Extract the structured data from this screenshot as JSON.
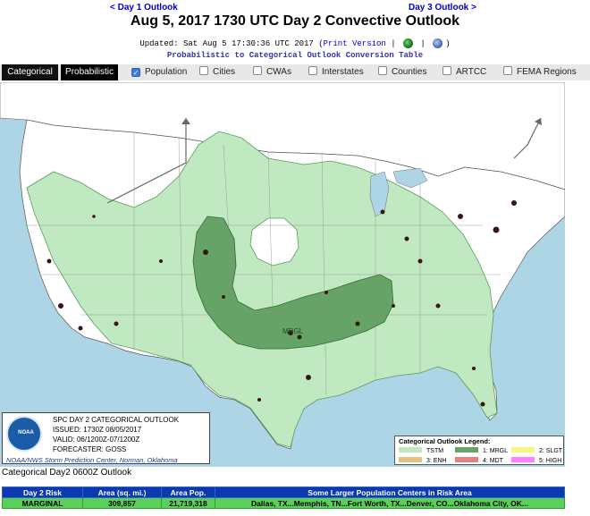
{
  "nav": {
    "prev_label": "< Day 1 Outlook",
    "next_label": "Day 3 Outlook >"
  },
  "title": "Aug 5, 2017 1730 UTC Day 2 Convective Outlook",
  "updated": {
    "prefix": "Updated: Sat Aug 5 17:30:36 UTC 2017 (",
    "print_label": "Print Version",
    "sep1": " | ",
    "sep2": " | ",
    "suffix": ")"
  },
  "conversion_link": "Probabilistic to Categorical Outlook Conversion Table",
  "tabs": [
    {
      "label": "Categorical",
      "active": true
    },
    {
      "label": "Probabilistic",
      "active": false
    }
  ],
  "overlays": [
    {
      "label": "Population",
      "checked": true
    },
    {
      "label": "Cities",
      "checked": false
    },
    {
      "label": "CWAs",
      "checked": false
    },
    {
      "label": "Interstates",
      "checked": false
    },
    {
      "label": "Counties",
      "checked": false
    },
    {
      "label": "ARTCC",
      "checked": false
    },
    {
      "label": "FEMA Regions",
      "checked": false
    }
  ],
  "map": {
    "risk_label": "MRGL",
    "colors": {
      "water": "#aed5e6",
      "land": "#ffffff",
      "tstm": "#c1e9c1",
      "mrgl": "#66a366"
    }
  },
  "info_box": {
    "logo_text": "NOAA",
    "line1": "SPC DAY 2 CATEGORICAL OUTLOOK",
    "line2": "ISSUED: 1730Z 08/05/2017",
    "line3": "VALID: 06/1200Z-07/1200Z",
    "line4": "FORECASTER: GOSS",
    "footer": "NOAA/NWS Storm Prediction Center, Norman, Oklahoma"
  },
  "legend": {
    "title": "Categorical Outlook Legend:",
    "items": [
      {
        "label": "TSTM",
        "color": "#c1e9c1"
      },
      {
        "label": "1: MRGL",
        "color": "#66a366"
      },
      {
        "label": "2: SLGT",
        "color": "#f6f67f"
      },
      {
        "label": "3: ENH",
        "color": "#e6c27f"
      },
      {
        "label": "4: MDT",
        "color": "#e67f7f"
      },
      {
        "label": "5: HIGH",
        "color": "#ff7fff"
      }
    ]
  },
  "table_caption": "Categorical Day2 0600Z Outlook",
  "risk_table": {
    "headers": [
      "Day 2 Risk",
      "Area (sq. mi.)",
      "Area Pop.",
      "Some Larger Population Centers in Risk Area"
    ],
    "row": [
      "MARGINAL",
      "309,857",
      "21,719,318",
      "Dallas, TX...Memphis, TN...Fort Worth, TX...Denver, CO...Oklahoma City, OK..."
    ]
  }
}
